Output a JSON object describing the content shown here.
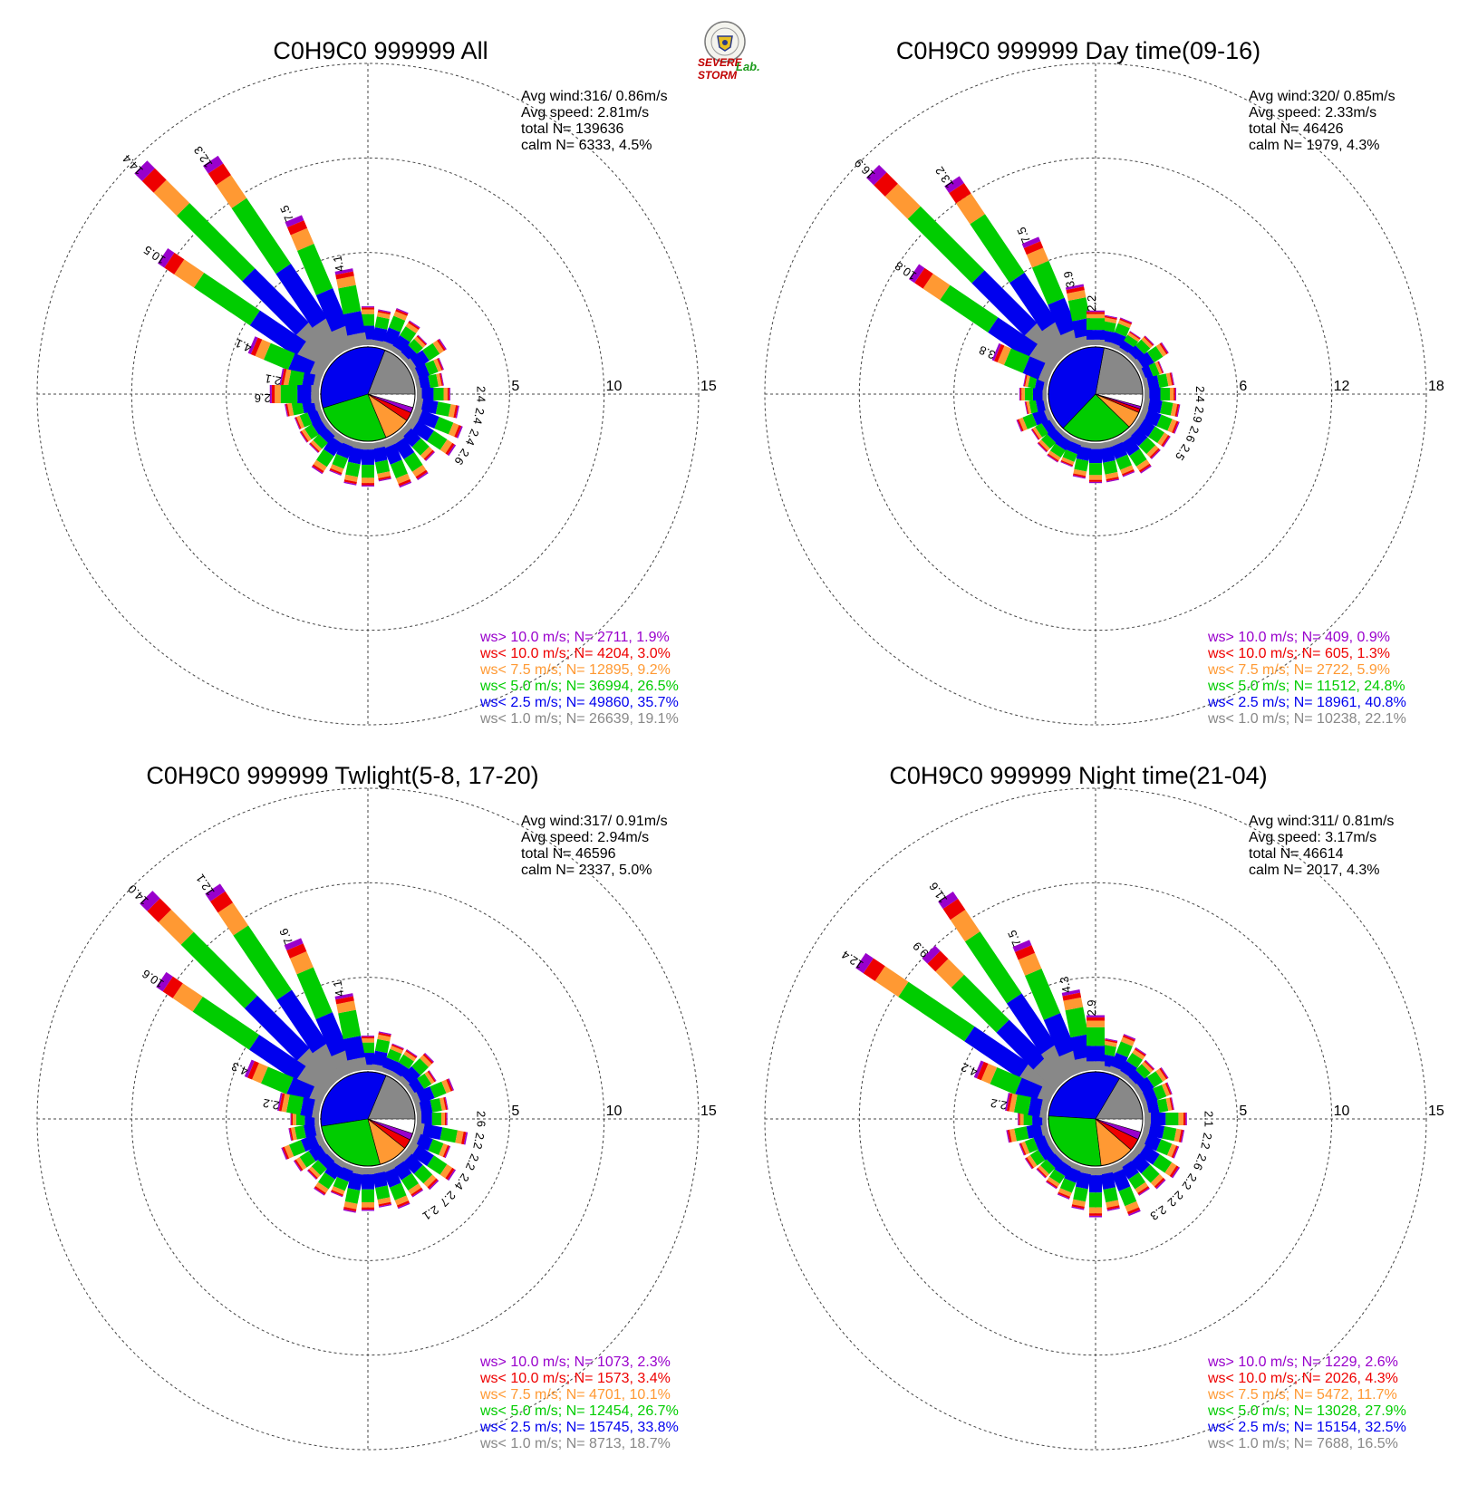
{
  "speed_classes": [
    {
      "label": "ws< 1.0 m/s",
      "color": "#888888"
    },
    {
      "label": "ws< 2.5 m/s",
      "color": "#0000ee"
    },
    {
      "label": "ws< 5.0 m/s",
      "color": "#00cc00"
    },
    {
      "label": "ws< 7.5 m/s",
      "color": "#ff9933"
    },
    {
      "label": "ws< 10.0 m/s",
      "color": "#ee0000"
    },
    {
      "label": "ws> 10.0 m/s",
      "color": "#9900cc"
    }
  ],
  "logo": {
    "line1": "SEVERE STORM",
    "line2": "Lab."
  },
  "chart_data": [
    {
      "type": "wind-rose",
      "title": "C0H9C0 999999 All",
      "stats": {
        "avg_wind": "Avg wind:316/ 0.86m/s",
        "avg_speed": "Avg speed: 2.81m/s",
        "total": "total N=    139636",
        "calm": "calm N=   6333,   4.5%"
      },
      "ring_labels": [
        "5",
        "10",
        "15"
      ],
      "rmax": 15,
      "directions_deg": [
        315,
        304,
        326,
        337,
        293,
        349,
        281,
        270
      ],
      "petal_totals": [
        14.4,
        10.5,
        12.3,
        7.5,
        4.1,
        4.1,
        2.1,
        2.6
      ],
      "value_labels": [
        "14.4",
        "10.5",
        "12.3",
        "7.5",
        "4.1",
        "4.1",
        "2.1",
        "2.6",
        "2.4",
        "2.4",
        "2.4",
        "2.6"
      ],
      "pie_percent": [
        19.1,
        35.7,
        26.5,
        9.2,
        3.0,
        1.9
      ],
      "legend": [
        {
          "text": "ws> 10.0 m/s; N=  2711,  1.9%",
          "color": "#9900cc"
        },
        {
          "text": "ws< 10.0 m/s; N=  4204,  3.0%",
          "color": "#ee0000"
        },
        {
          "text": "ws<  7.5 m/s; N= 12895,  9.2%",
          "color": "#ff9933"
        },
        {
          "text": "ws<  5.0 m/s; N= 36994, 26.5%",
          "color": "#00cc00"
        },
        {
          "text": "ws<  2.5 m/s; N= 49860, 35.7%",
          "color": "#0000ee"
        },
        {
          "text": "ws<  1.0 m/s; N= 26639, 19.1%",
          "color": "#888888"
        }
      ]
    },
    {
      "type": "wind-rose",
      "title": "C0H9C0 999999 Day time(09-16)",
      "stats": {
        "avg_wind": "Avg wind:320/ 0.85m/s",
        "avg_speed": "Avg speed: 2.33m/s",
        "total": "total N=     46426",
        "calm": "calm N=   1979,   4.3%"
      },
      "ring_labels": [
        "6",
        "12",
        "18"
      ],
      "rmax": 18,
      "directions_deg": [
        315,
        304,
        326,
        337,
        293,
        349,
        0
      ],
      "petal_totals": [
        16.9,
        10.8,
        13.2,
        7.5,
        3.8,
        3.9,
        2.2
      ],
      "value_labels": [
        "16.9",
        "10.8",
        "13.2",
        "7.5",
        "3.8",
        "3.9",
        "2.2",
        "2.4",
        "2.9",
        "2.6",
        "2.5"
      ],
      "pie_percent": [
        22.1,
        40.8,
        24.8,
        5.9,
        1.3,
        0.9
      ],
      "legend": [
        {
          "text": "ws> 10.0 m/s; N=   409,  0.9%",
          "color": "#9900cc"
        },
        {
          "text": "ws< 10.0 m/s; N=   605,  1.3%",
          "color": "#ee0000"
        },
        {
          "text": "ws<  7.5 m/s; N=  2722,  5.9%",
          "color": "#ff9933"
        },
        {
          "text": "ws<  5.0 m/s; N= 11512, 24.8%",
          "color": "#00cc00"
        },
        {
          "text": "ws<  2.5 m/s; N= 18961, 40.8%",
          "color": "#0000ee"
        },
        {
          "text": "ws<  1.0 m/s; N= 10238, 22.1%",
          "color": "#888888"
        }
      ]
    },
    {
      "type": "wind-rose",
      "title": "C0H9C0 999999 Twlight(5-8, 17-20)",
      "stats": {
        "avg_wind": "Avg wind:317/ 0.91m/s",
        "avg_speed": "Avg speed: 2.94m/s",
        "total": "total N=     46596",
        "calm": "calm N=   2337,   5.0%"
      },
      "ring_labels": [
        "5",
        "10",
        "15"
      ],
      "rmax": 15,
      "directions_deg": [
        315,
        304,
        326,
        337,
        293,
        349,
        281
      ],
      "petal_totals": [
        14.0,
        10.6,
        12.1,
        7.6,
        4.3,
        4.1,
        2.2
      ],
      "value_labels": [
        "14.0",
        "10.6",
        "12.1",
        "7.6",
        "4.3",
        "4.1",
        "2.2",
        "2.6",
        "2.2",
        "2.2",
        "2.4",
        "2.7",
        "2.1"
      ],
      "pie_percent": [
        18.7,
        33.8,
        26.7,
        10.1,
        3.4,
        2.3
      ],
      "legend": [
        {
          "text": "ws> 10.0 m/s; N=  1073,  2.3%",
          "color": "#9900cc"
        },
        {
          "text": "ws< 10.0 m/s; N=  1573,  3.4%",
          "color": "#ee0000"
        },
        {
          "text": "ws<  7.5 m/s; N=  4701, 10.1%",
          "color": "#ff9933"
        },
        {
          "text": "ws<  5.0 m/s; N= 12454, 26.7%",
          "color": "#00cc00"
        },
        {
          "text": "ws<  2.5 m/s; N= 15745, 33.8%",
          "color": "#0000ee"
        },
        {
          "text": "ws<  1.0 m/s; N=  8713, 18.7%",
          "color": "#888888"
        }
      ]
    },
    {
      "type": "wind-rose",
      "title": "C0H9C0 999999 Night time(21-04)",
      "stats": {
        "avg_wind": "Avg wind:311/ 0.81m/s",
        "avg_speed": "Avg speed: 3.17m/s",
        "total": "total N=     46614",
        "calm": "calm N=   2017,   4.3%"
      },
      "ring_labels": [
        "5",
        "10",
        "15"
      ],
      "rmax": 15,
      "directions_deg": [
        304,
        315,
        326,
        337,
        293,
        281,
        349,
        0
      ],
      "petal_totals": [
        12.4,
        9.9,
        11.6,
        7.5,
        4.2,
        2.2,
        4.3,
        2.9
      ],
      "value_labels": [
        "12.4",
        "9.9",
        "11.6",
        "7.5",
        "4.2",
        "2.2",
        "4.3",
        "2.9",
        "2.1",
        "2.2",
        "2.6",
        "2.2",
        "2.2",
        "2.3"
      ],
      "pie_percent": [
        16.5,
        32.5,
        27.9,
        11.7,
        4.3,
        2.6
      ],
      "legend": [
        {
          "text": "ws> 10.0 m/s; N=  1229,  2.6%",
          "color": "#9900cc"
        },
        {
          "text": "ws< 10.0 m/s; N=  2026,  4.3%",
          "color": "#ee0000"
        },
        {
          "text": "ws<  7.5 m/s; N=  5472, 11.7%",
          "color": "#ff9933"
        },
        {
          "text": "ws<  5.0 m/s; N= 13028, 27.9%",
          "color": "#00cc00"
        },
        {
          "text": "ws<  2.5 m/s; N= 15154, 32.5%",
          "color": "#0000ee"
        },
        {
          "text": "ws<  1.0 m/s; N=  7688, 16.5%",
          "color": "#888888"
        }
      ]
    }
  ]
}
